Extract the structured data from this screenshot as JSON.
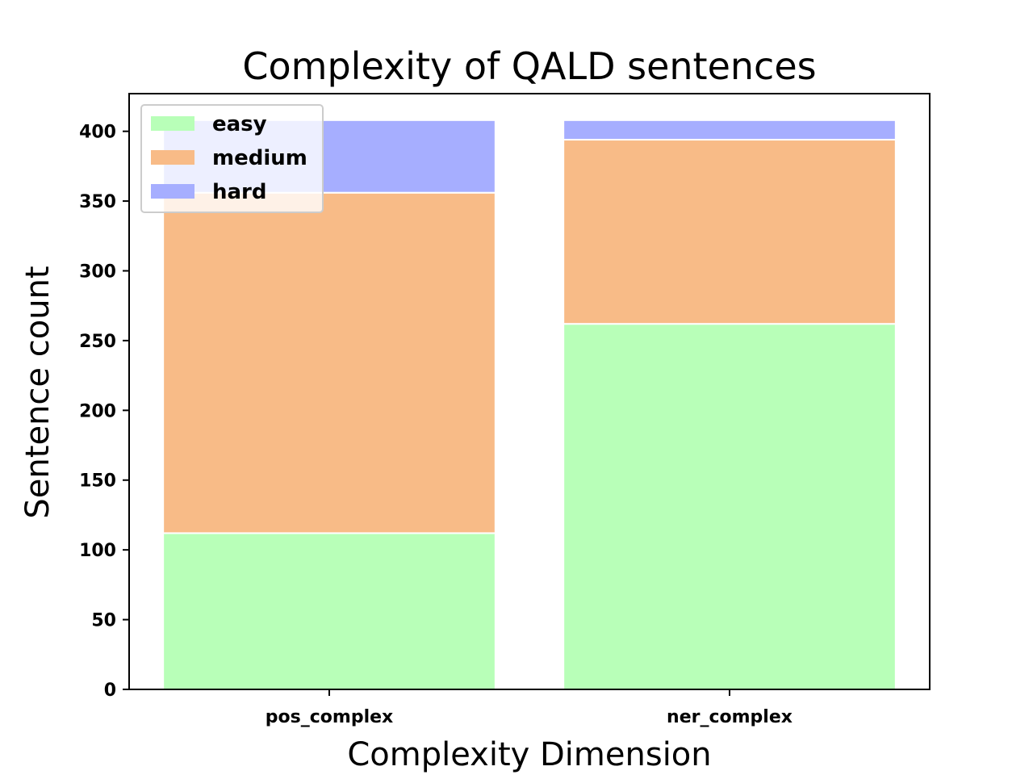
{
  "chart_data": {
    "type": "bar",
    "stacked": true,
    "title": "Complexity of QALD sentences",
    "xlabel": "Complexity Dimension",
    "ylabel": "Sentence count",
    "categories": [
      "pos_complex",
      "ner_complex"
    ],
    "series": [
      {
        "name": "easy",
        "values": [
          112,
          262
        ],
        "color": "#b8ffb8"
      },
      {
        "name": "medium",
        "values": [
          244,
          132
        ],
        "color": "#f8bb87"
      },
      {
        "name": "hard",
        "values": [
          52,
          14
        ],
        "color": "#a6aeff"
      }
    ],
    "ylim": [
      0,
      427
    ],
    "yticks": [
      0,
      50,
      100,
      150,
      200,
      250,
      300,
      350,
      400
    ],
    "grid": false,
    "legend_position": "top-left"
  }
}
